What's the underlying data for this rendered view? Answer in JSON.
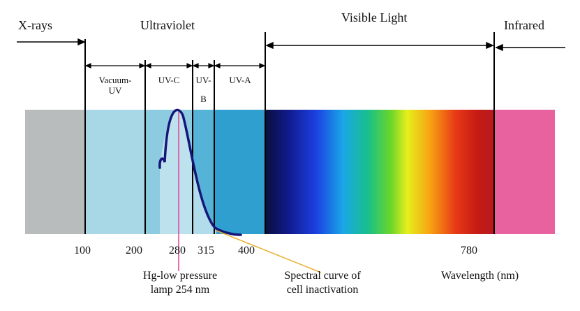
{
  "regions": {
    "xrays": "X-rays",
    "ultraviolet": "Ultraviolet",
    "visible": "Visible Light",
    "infrared": "Infrared"
  },
  "uv_subbands": {
    "vacuum_uv_line1": "Vacuum-",
    "vacuum_uv_line2": "UV",
    "uvc": "UV-C",
    "uvb_line1": "UV-",
    "uvb_line2": "B",
    "uva": "UV-A"
  },
  "ticks": [
    "100",
    "200",
    "280",
    "315",
    "400",
    "780"
  ],
  "axis_label": "Wavelength (nm)",
  "annotations": {
    "lamp_line1": "Hg-low pressure",
    "lamp_line2": "lamp 254 nm",
    "curve_line1": "Spectral curve of",
    "curve_line2": "cell inactivation"
  },
  "colors": {
    "xray_band": "#b9bcbc",
    "vacuum_uv_band": "#a8d8e6",
    "uvc_band": "#8ccbe0",
    "uvb_band": "#56b3d8",
    "uva_band": "#2f9fd0",
    "infrared_band": "#e862a0",
    "lamp_marker": "#e0409a",
    "curve_pointer": "#e8b030",
    "inactivation_curve": "#16167a"
  }
}
